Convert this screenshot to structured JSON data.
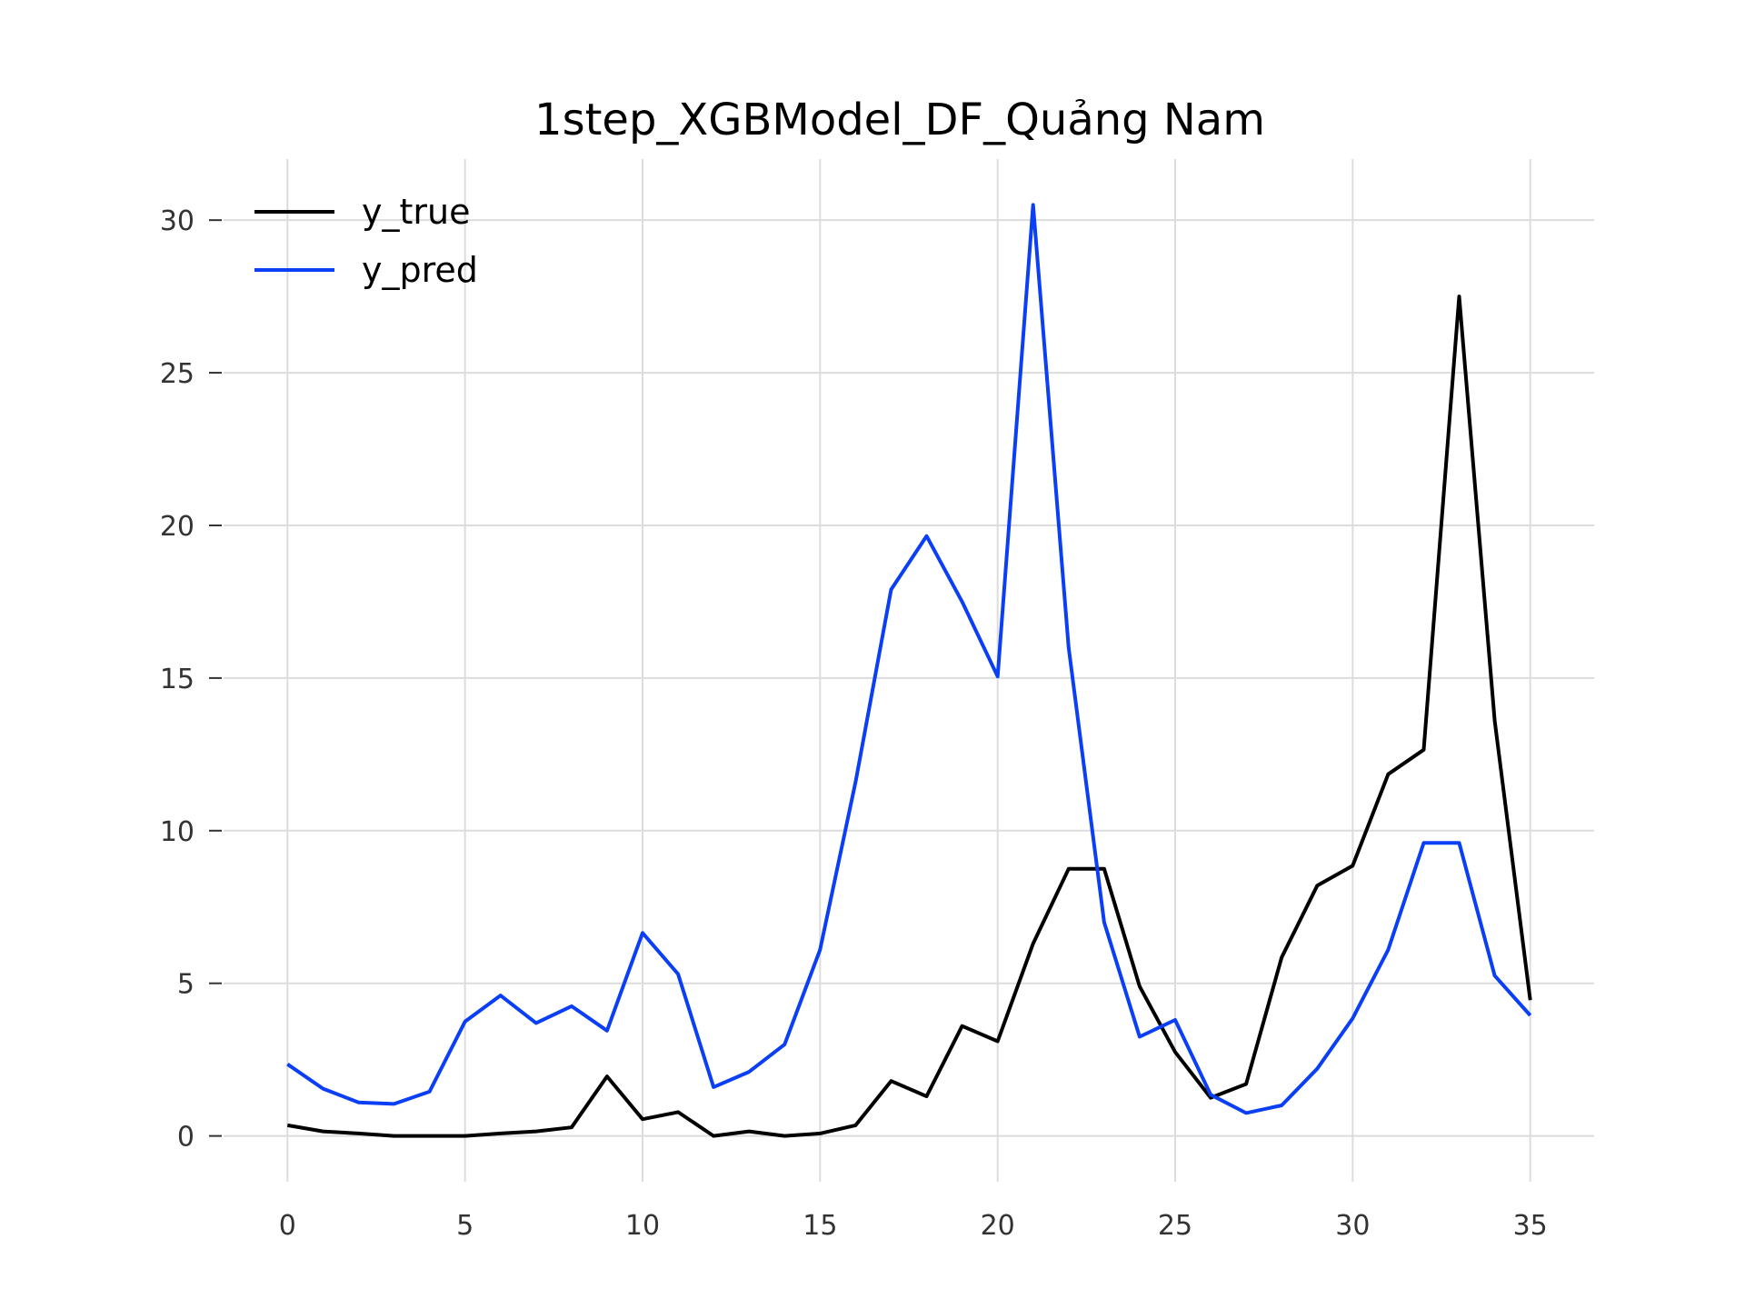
{
  "chart_data": {
    "type": "line",
    "title": "1step_XGBModel_DF_Quảng Nam",
    "xlabel": "",
    "ylabel": "",
    "xlim": [
      -1.8,
      36.8
    ],
    "ylim": [
      -1.5,
      32.0
    ],
    "x_ticks": [
      0,
      5,
      10,
      15,
      20,
      25,
      30,
      35
    ],
    "y_ticks": [
      0,
      5,
      10,
      15,
      20,
      25,
      30
    ],
    "grid": true,
    "legend_position": "top-left",
    "x": [
      0,
      1,
      2,
      3,
      4,
      5,
      6,
      7,
      8,
      9,
      10,
      11,
      12,
      13,
      14,
      15,
      16,
      17,
      18,
      19,
      20,
      21,
      22,
      23,
      24,
      25,
      26,
      27,
      28,
      29,
      30,
      31,
      32,
      33,
      34,
      35
    ],
    "series": [
      {
        "name": "y_true",
        "color": "#000000",
        "values": [
          0.35,
          0.15,
          0.08,
          0.0,
          0.0,
          0.0,
          0.08,
          0.15,
          0.28,
          1.95,
          0.55,
          0.78,
          0.0,
          0.15,
          0.0,
          0.08,
          0.35,
          1.8,
          1.3,
          3.6,
          3.1,
          6.3,
          8.75,
          8.75,
          4.9,
          2.75,
          1.25,
          1.7,
          5.85,
          8.2,
          8.85,
          11.85,
          12.65,
          27.5,
          13.6,
          4.45
        ]
      },
      {
        "name": "y_pred",
        "color": "#0a3ff5",
        "values": [
          2.35,
          1.55,
          1.1,
          1.05,
          1.45,
          3.75,
          4.6,
          3.7,
          4.25,
          3.45,
          6.65,
          5.3,
          1.6,
          2.1,
          3.0,
          6.1,
          11.6,
          17.9,
          19.65,
          17.5,
          15.05,
          30.5,
          16.0,
          7.0,
          3.25,
          3.8,
          1.35,
          0.75,
          1.0,
          2.2,
          3.85,
          6.1,
          9.6,
          9.6,
          5.25,
          3.95
        ]
      }
    ]
  }
}
